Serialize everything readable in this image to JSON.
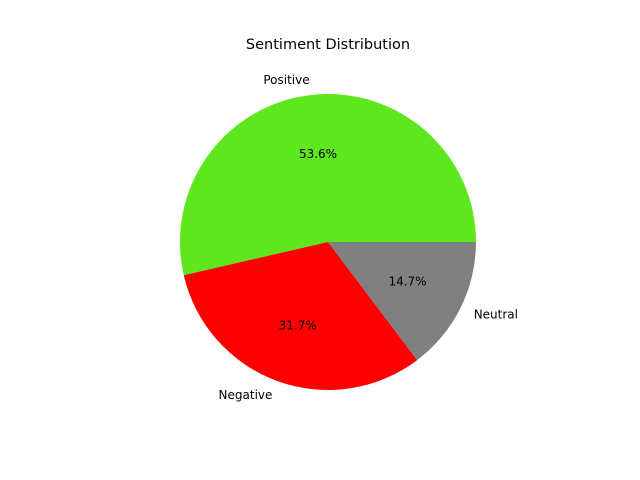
{
  "chart_data": {
    "type": "pie",
    "title": "Sentiment Distribution",
    "slices": [
      {
        "label": "Positive",
        "pct_text": "53.6%",
        "value": 53.6,
        "color": "#5ee61e"
      },
      {
        "label": "Negative",
        "pct_text": "31.7%",
        "value": 31.7,
        "color": "#ff0000"
      },
      {
        "label": "Neutral",
        "pct_text": "14.7%",
        "value": 14.7,
        "color": "#808080"
      }
    ],
    "start_angle_deg": 0,
    "direction": "counterclockwise"
  }
}
